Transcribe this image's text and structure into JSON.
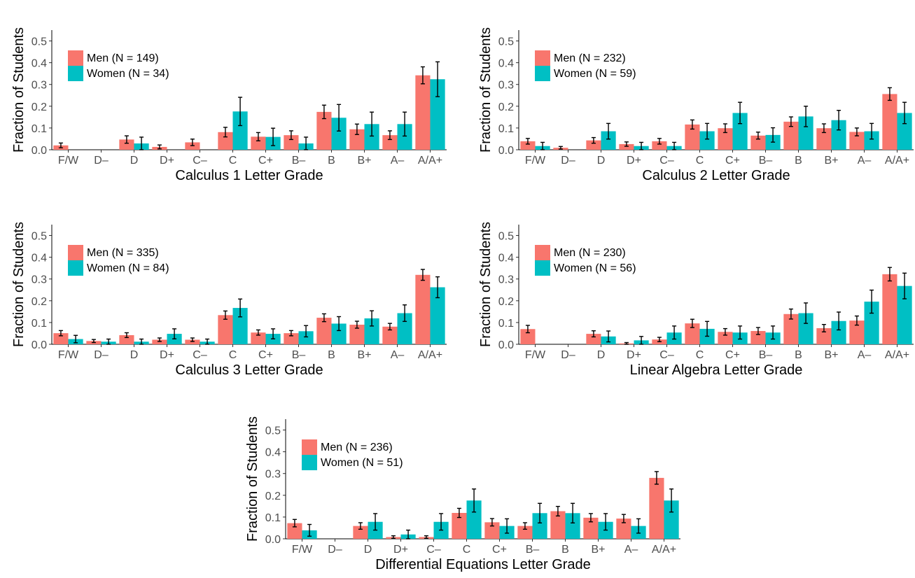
{
  "colors": {
    "men": "#F8766D",
    "women": "#00BFC4"
  },
  "common": {
    "ylabel": "Fraction of Students",
    "yticks": [
      "0.0",
      "0.1",
      "0.2",
      "0.3",
      "0.4",
      "0.5"
    ],
    "ylim": [
      0,
      0.55
    ],
    "categories": [
      "F/W",
      "D–",
      "D",
      "D+",
      "C–",
      "C",
      "C+",
      "B–",
      "B",
      "B+",
      "A–",
      "A/A+"
    ]
  },
  "chart_data": [
    {
      "type": "bar",
      "xlabel": "Calculus 1 Letter Grade",
      "ylabel": "Fraction of Students",
      "categories": [
        "F/W",
        "D–",
        "D",
        "D+",
        "C–",
        "C",
        "C+",
        "B–",
        "B",
        "B+",
        "A–",
        "A/A+"
      ],
      "ylim": [
        0,
        0.55
      ],
      "legend_position": "top-left",
      "series": [
        {
          "name": "Men (N = 149)",
          "values": [
            0.02,
            0,
            0.047,
            0.013,
            0.034,
            0.081,
            0.06,
            0.067,
            0.174,
            0.094,
            0.067,
            0.342
          ],
          "errors": [
            0.011,
            0,
            0.017,
            0.009,
            0.015,
            0.022,
            0.019,
            0.02,
            0.031,
            0.024,
            0.02,
            0.039
          ]
        },
        {
          "name": "Women (N = 34)",
          "values": [
            0,
            0,
            0.029,
            0,
            0,
            0.176,
            0.059,
            0.029,
            0.147,
            0.118,
            0.118,
            0.324
          ],
          "errors": [
            0,
            0,
            0.029,
            0,
            0,
            0.065,
            0.04,
            0.029,
            0.061,
            0.055,
            0.055,
            0.08
          ]
        }
      ]
    },
    {
      "type": "bar",
      "xlabel": "Calculus 2 Letter Grade",
      "ylabel": "Fraction of Students",
      "categories": [
        "F/W",
        "D–",
        "D",
        "D+",
        "C–",
        "C",
        "C+",
        "B–",
        "B",
        "B+",
        "A–",
        "A/A+"
      ],
      "ylim": [
        0,
        0.55
      ],
      "legend_position": "top-left",
      "series": [
        {
          "name": "Men (N = 232)",
          "values": [
            0.039,
            0.009,
            0.043,
            0.026,
            0.039,
            0.116,
            0.099,
            0.065,
            0.129,
            0.099,
            0.082,
            0.256
          ],
          "errors": [
            0.013,
            0.006,
            0.013,
            0.01,
            0.013,
            0.021,
            0.02,
            0.016,
            0.022,
            0.02,
            0.018,
            0.029
          ]
        },
        {
          "name": "Women (N = 59)",
          "values": [
            0.017,
            0,
            0.085,
            0.017,
            0.017,
            0.085,
            0.169,
            0.068,
            0.153,
            0.136,
            0.085,
            0.169
          ],
          "errors": [
            0.017,
            0,
            0.036,
            0.017,
            0.017,
            0.036,
            0.049,
            0.033,
            0.047,
            0.045,
            0.036,
            0.049
          ]
        }
      ]
    },
    {
      "type": "bar",
      "xlabel": "Calculus 3 Letter Grade",
      "ylabel": "Fraction of Students",
      "categories": [
        "F/W",
        "D–",
        "D",
        "D+",
        "C–",
        "C",
        "C+",
        "B–",
        "B",
        "B+",
        "A–",
        "A/A+"
      ],
      "ylim": [
        0,
        0.55
      ],
      "legend_position": "top-left",
      "series": [
        {
          "name": "Men (N = 335)",
          "values": [
            0.051,
            0.015,
            0.042,
            0.021,
            0.021,
            0.134,
            0.054,
            0.051,
            0.122,
            0.09,
            0.081,
            0.319
          ],
          "errors": [
            0.012,
            0.007,
            0.011,
            0.008,
            0.008,
            0.019,
            0.012,
            0.012,
            0.018,
            0.016,
            0.015,
            0.025
          ]
        },
        {
          "name": "Women (N = 84)",
          "values": [
            0.024,
            0.012,
            0.012,
            0.048,
            0.012,
            0.167,
            0.048,
            0.06,
            0.095,
            0.119,
            0.143,
            0.262
          ],
          "errors": [
            0.017,
            0.012,
            0.012,
            0.023,
            0.012,
            0.041,
            0.023,
            0.026,
            0.032,
            0.035,
            0.038,
            0.048
          ]
        }
      ]
    },
    {
      "type": "bar",
      "xlabel": "Linear Algebra Letter Grade",
      "ylabel": "Fraction of Students",
      "categories": [
        "F/W",
        "D–",
        "D",
        "D+",
        "C–",
        "C",
        "C+",
        "B–",
        "B",
        "B+",
        "A–",
        "A/A+"
      ],
      "ylim": [
        0,
        0.55
      ],
      "legend_position": "top-left",
      "series": [
        {
          "name": "Men (N = 230)",
          "values": [
            0.07,
            0,
            0.048,
            0.004,
            0.022,
            0.096,
            0.057,
            0.061,
            0.139,
            0.074,
            0.109,
            0.322
          ],
          "errors": [
            0.017,
            0,
            0.014,
            0.004,
            0.01,
            0.019,
            0.015,
            0.016,
            0.023,
            0.017,
            0.021,
            0.031
          ]
        },
        {
          "name": "Women (N = 56)",
          "values": [
            0,
            0,
            0.036,
            0.018,
            0.054,
            0.071,
            0.054,
            0.054,
            0.143,
            0.107,
            0.196,
            0.268
          ],
          "errors": [
            0,
            0,
            0.025,
            0.018,
            0.03,
            0.034,
            0.03,
            0.03,
            0.047,
            0.041,
            0.053,
            0.059
          ]
        }
      ]
    },
    {
      "type": "bar",
      "xlabel": "Differential Equations Letter Grade",
      "ylabel": "Fraction of Students",
      "categories": [
        "F/W",
        "D–",
        "D",
        "D+",
        "C–",
        "C",
        "C+",
        "B–",
        "B",
        "B+",
        "A–",
        "A/A+"
      ],
      "ylim": [
        0,
        0.55
      ],
      "legend_position": "top-left",
      "series": [
        {
          "name": "Men (N = 236)",
          "values": [
            0.072,
            0,
            0.059,
            0.008,
            0.008,
            0.119,
            0.076,
            0.059,
            0.127,
            0.097,
            0.093,
            0.28
          ],
          "errors": [
            0.017,
            0,
            0.015,
            0.006,
            0.006,
            0.021,
            0.017,
            0.015,
            0.022,
            0.019,
            0.019,
            0.029
          ]
        },
        {
          "name": "Women (N = 51)",
          "values": [
            0.039,
            0,
            0.078,
            0.02,
            0.078,
            0.176,
            0.059,
            0.118,
            0.118,
            0.078,
            0.059,
            0.176
          ],
          "errors": [
            0.027,
            0,
            0.038,
            0.02,
            0.038,
            0.053,
            0.033,
            0.045,
            0.045,
            0.038,
            0.033,
            0.053
          ]
        }
      ]
    }
  ]
}
